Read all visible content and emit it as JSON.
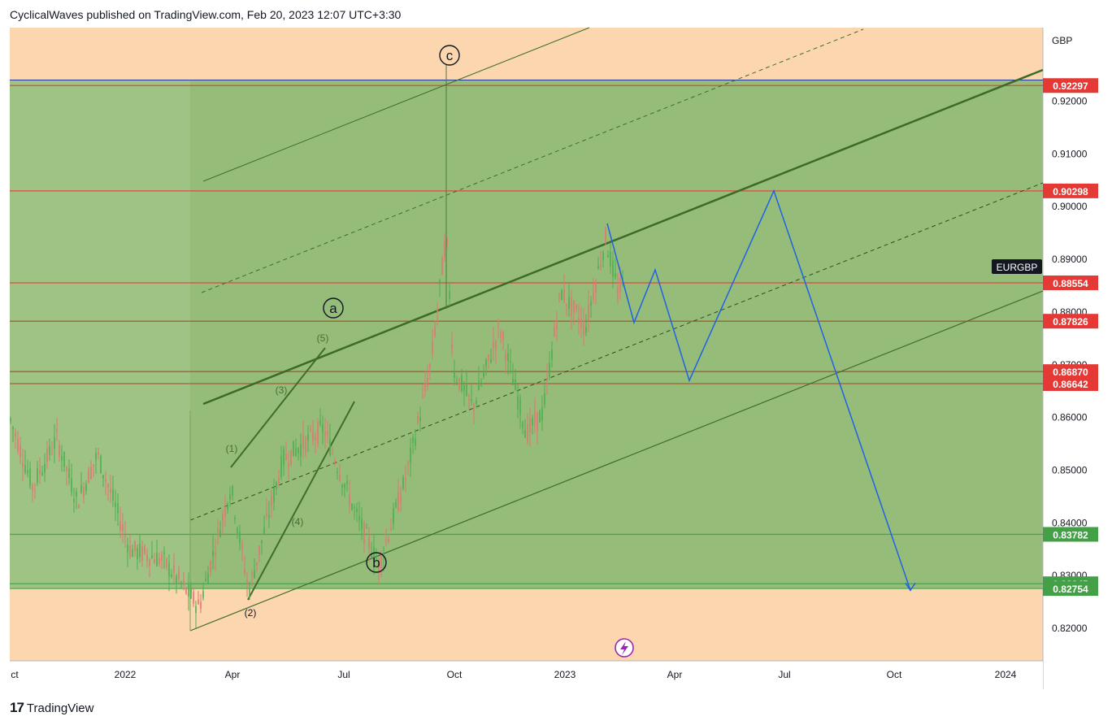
{
  "header": {
    "text": "CyclicalWaves published on TradingView.com, Feb 20, 2023 12:07 UTC+3:30"
  },
  "footer": {
    "logo": "17",
    "brand": "TradingView"
  },
  "chart_data": {
    "type": "candlestick",
    "symbol": "EURGBP",
    "currency": "GBP",
    "y_ticks": [
      "0.92000",
      "0.91000",
      "0.90000",
      "0.89000",
      "0.88000",
      "0.87000",
      "0.86000",
      "0.85000",
      "0.84000",
      "0.83000",
      "0.82000"
    ],
    "x_ticks": [
      "ct",
      "2022",
      "Apr",
      "Jul",
      "Oct",
      "2023",
      "Apr",
      "Jul",
      "Oct",
      "2024"
    ],
    "price_levels": [
      {
        "value": "0.92297",
        "color": "#e53935"
      },
      {
        "value": "0.90298",
        "color": "#e53935"
      },
      {
        "value": "0.88554",
        "color": "#e53935"
      },
      {
        "value": "0.87826",
        "color": "#e53935"
      },
      {
        "value": "0.86870",
        "color": "#e53935"
      },
      {
        "value": "0.86642",
        "color": "#e53935"
      },
      {
        "value": "0.83782",
        "color": "#43a047"
      },
      {
        "value": "0.82845",
        "color": "#43a047"
      },
      {
        "value": "0.82754",
        "color": "#43a047"
      }
    ],
    "wave_labels": {
      "major": [
        "a",
        "b",
        "c"
      ],
      "minor": [
        "(1)",
        "(2)",
        "(3)",
        "(4)",
        "(5)"
      ]
    },
    "projection_path_prices": [
      0.8968,
      0.878,
      0.888,
      0.867,
      0.903,
      0.8272
    ],
    "colors": {
      "up": "#4caf50",
      "down": "#e57373",
      "projection": "#1e63e6",
      "zone_green": "#8ec07c",
      "zone_orange": "#fbc894",
      "channel": "#3f6d2a"
    }
  }
}
